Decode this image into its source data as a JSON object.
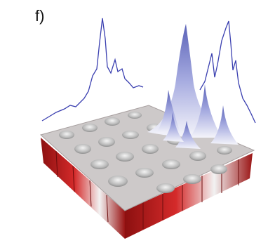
{
  "panel_label": "f)"
}
